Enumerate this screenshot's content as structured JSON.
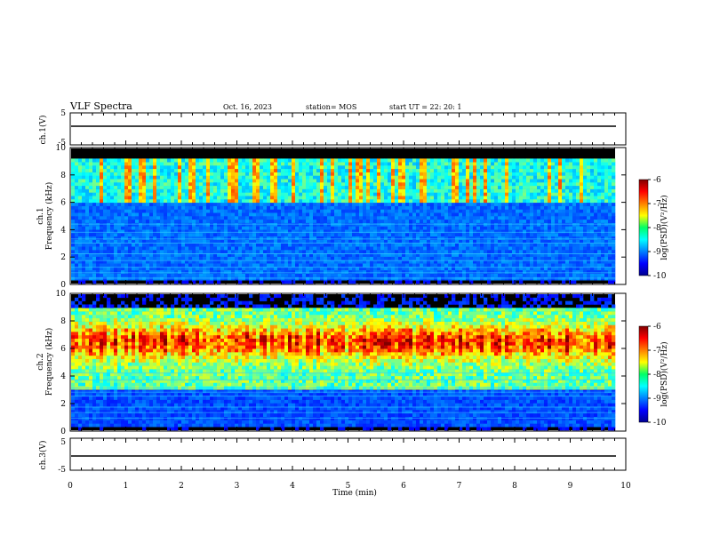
{
  "header": {
    "title": "VLF Spectra",
    "date": "Oct. 16, 2023",
    "station": "station= MOS",
    "start_ut": "start  UT  =   22: 20: 1"
  },
  "chart_data": [
    {
      "type": "line",
      "panel": "ch1-waveform",
      "ylabel": "ch.1(V)",
      "ylim": [
        -5,
        5
      ],
      "y_ticks": [
        "5",
        "-5"
      ],
      "x_range": [
        0,
        10
      ],
      "description_values": {
        "baseline": 0
      }
    },
    {
      "type": "heatmap",
      "panel": "ch1-spectrogram",
      "ylabel": "ch.1\nFrequency (kHz)",
      "ylabel_line1": "ch.1",
      "ylabel_line2": "Frequency (kHz)",
      "ylim": [
        0,
        10
      ],
      "y_ticks": [
        "0",
        "2",
        "4",
        "6",
        "8",
        "10"
      ],
      "x_range": [
        0,
        10
      ],
      "colorbar": {
        "label": "log(PSD)(V²/Hz)",
        "range": [
          -10,
          -6
        ],
        "ticks": [
          "-6",
          "-7",
          "-8",
          "-9",
          "-10"
        ]
      }
    },
    {
      "type": "heatmap",
      "panel": "ch2-spectrogram",
      "ylabel_line1": "ch.2",
      "ylabel_line2": "Frequency (kHz)",
      "ylim": [
        0,
        10
      ],
      "y_ticks": [
        "0",
        "2",
        "4",
        "6",
        "8",
        "10"
      ],
      "x_range": [
        0,
        10
      ],
      "colorbar": {
        "label": "log(PSD)(V²/Hz)",
        "range": [
          -10,
          -6
        ],
        "ticks": [
          "-6",
          "-7",
          "-8",
          "-9",
          "-10"
        ]
      }
    },
    {
      "type": "line",
      "panel": "ch3-waveform",
      "ylabel": "ch.3(V)",
      "ylim": [
        -5,
        5
      ],
      "y_ticks": [
        "5",
        "-5"
      ],
      "x_range": [
        0,
        10
      ],
      "description_values": {
        "baseline": 0
      }
    }
  ],
  "x_axis": {
    "label": "Time (min)",
    "ticks": [
      "0",
      "1",
      "2",
      "3",
      "4",
      "5",
      "6",
      "7",
      "8",
      "9",
      "10"
    ]
  },
  "colors": {
    "jet_low": "#000080",
    "jet_high": "#800000"
  }
}
